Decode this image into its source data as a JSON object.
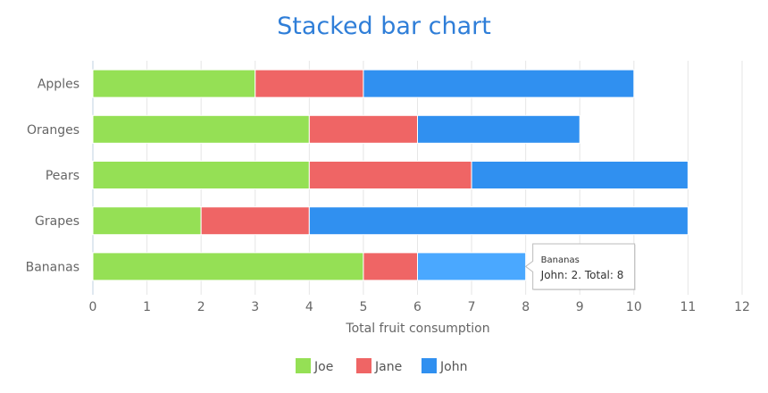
{
  "chart_data": {
    "type": "bar",
    "orientation": "horizontal",
    "stacked": true,
    "title": "Stacked bar chart",
    "xlabel": "Total fruit consumption",
    "categories": [
      "Apples",
      "Oranges",
      "Pears",
      "Grapes",
      "Bananas"
    ],
    "xlim": [
      0,
      12
    ],
    "xticks": [
      "0",
      "1",
      "2",
      "3",
      "4",
      "5",
      "6",
      "7",
      "8",
      "9",
      "10",
      "11",
      "12"
    ],
    "grid": true,
    "legend_position": "bottom",
    "series": [
      {
        "name": "Joe",
        "values": [
          3,
          4,
          4,
          2,
          5
        ],
        "color": "#95e055"
      },
      {
        "name": "Jane",
        "values": [
          2,
          2,
          3,
          2,
          1
        ],
        "color": "#ef6565"
      },
      {
        "name": "John",
        "values": [
          5,
          3,
          4,
          7,
          2
        ],
        "color": "#3090f0"
      }
    ],
    "highlight": {
      "series": 2,
      "category": 4,
      "color": "#4aa8ff"
    },
    "tooltip": {
      "header": "Bananas",
      "body": "John: 2. Total: 8"
    }
  }
}
